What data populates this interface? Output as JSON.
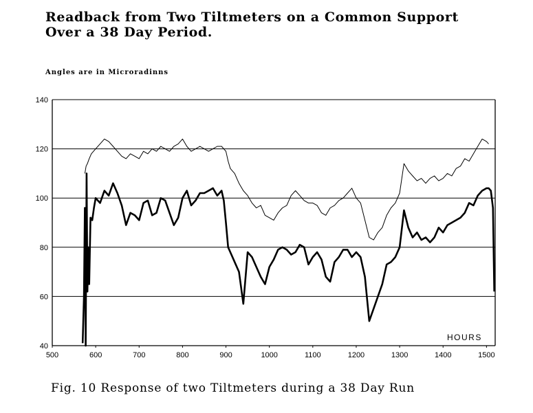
{
  "title_line1": "Readback from Two Tiltmeters on a Common Support",
  "title_line2": "Over a 38 Day Period.",
  "note": "Angles are in Microradinns",
  "caption": "Fig. 10 Response of two Tiltmeters during a 38 Day Run",
  "chart_data": {
    "type": "line",
    "title": "Readback from Two Tiltmeters on a Common Support Over a 38 Day Period.",
    "xlabel": "HOURS",
    "ylabel": "",
    "xlim": [
      500,
      1520
    ],
    "ylim": [
      40,
      140
    ],
    "x_ticks": [
      "500",
      "600",
      "700",
      "800",
      "900",
      "1000",
      "1100",
      "1200",
      "1300",
      "1400",
      "1500"
    ],
    "y_ticks": [
      "40",
      "60",
      "80",
      "100",
      "120",
      "140"
    ],
    "grid": "horizontal",
    "series": [
      {
        "x": [
          575,
          578,
          581,
          585,
          590,
          600,
          610,
          620,
          630,
          640,
          650,
          660,
          670,
          680,
          690,
          700,
          710,
          720,
          730,
          740,
          750,
          760,
          770,
          780,
          790,
          800,
          810,
          820,
          830,
          840,
          850,
          860,
          870,
          880,
          890,
          900,
          905,
          910,
          915,
          920,
          925,
          930,
          940,
          950,
          960,
          970,
          980,
          990,
          1000,
          1010,
          1020,
          1030,
          1040,
          1050,
          1060,
          1070,
          1080,
          1090,
          1100,
          1110,
          1120,
          1130,
          1140,
          1150,
          1160,
          1170,
          1180,
          1190,
          1200,
          1210,
          1220,
          1230,
          1240,
          1250,
          1260,
          1270,
          1280,
          1290,
          1300,
          1310,
          1320,
          1330,
          1340,
          1350,
          1360,
          1370,
          1380,
          1390,
          1400,
          1410,
          1420,
          1430,
          1440,
          1450,
          1460,
          1470,
          1480,
          1490,
          1500,
          1505
        ],
        "y": [
          110,
          113,
          114,
          116,
          118,
          120,
          122,
          124,
          123,
          121,
          119,
          117,
          116,
          118,
          117,
          116,
          119,
          118,
          120,
          119,
          121,
          120,
          119,
          121,
          122,
          124,
          121,
          119,
          120,
          121,
          120,
          119,
          120,
          121,
          121,
          119,
          115,
          112,
          111,
          110,
          108,
          106,
          103,
          101,
          98,
          96,
          97,
          93,
          92,
          91,
          94,
          96,
          97,
          101,
          103,
          101,
          99,
          98,
          98,
          97,
          94,
          93,
          96,
          97,
          99,
          100,
          102,
          104,
          100,
          98,
          91,
          84,
          83,
          86,
          88,
          93,
          96,
          98,
          102,
          114,
          111,
          109,
          107,
          108,
          106,
          108,
          109,
          107,
          108,
          110,
          109,
          112,
          113,
          116,
          115,
          118,
          121,
          124,
          123,
          122
        ]
      },
      {
        "x": [
          570,
          573,
          575,
          577,
          579,
          581,
          583,
          585,
          588,
          592,
          596,
          600,
          610,
          620,
          630,
          640,
          650,
          660,
          670,
          680,
          690,
          700,
          710,
          720,
          730,
          740,
          750,
          760,
          770,
          780,
          790,
          800,
          810,
          820,
          830,
          840,
          850,
          860,
          870,
          880,
          890,
          895,
          900,
          905,
          910,
          920,
          930,
          940,
          950,
          960,
          970,
          980,
          990,
          1000,
          1010,
          1020,
          1030,
          1040,
          1050,
          1060,
          1070,
          1080,
          1090,
          1100,
          1110,
          1120,
          1130,
          1140,
          1150,
          1160,
          1170,
          1180,
          1190,
          1200,
          1210,
          1220,
          1230,
          1240,
          1250,
          1260,
          1270,
          1280,
          1290,
          1300,
          1310,
          1320,
          1330,
          1340,
          1350,
          1360,
          1370,
          1380,
          1390,
          1400,
          1410,
          1420,
          1430,
          1440,
          1450,
          1460,
          1470,
          1480,
          1490,
          1500,
          1505,
          1510,
          1515,
          1518
        ],
        "y": [
          41,
          60,
          96,
          40,
          110,
          62,
          80,
          65,
          92,
          91,
          96,
          100,
          98,
          103,
          101,
          106,
          102,
          97,
          89,
          94,
          93,
          91,
          98,
          99,
          93,
          94,
          100,
          99,
          94,
          89,
          92,
          100,
          103,
          97,
          99,
          102,
          102,
          103,
          104,
          101,
          103,
          99,
          90,
          80,
          78,
          74,
          70,
          57,
          78,
          76,
          72,
          68,
          65,
          72,
          75,
          79,
          80,
          79,
          77,
          78,
          81,
          80,
          73,
          76,
          78,
          75,
          68,
          66,
          74,
          76,
          79,
          79,
          76,
          78,
          76,
          68,
          50,
          55,
          60,
          65,
          73,
          74,
          76,
          80,
          95,
          88,
          84,
          86,
          83,
          84,
          82,
          84,
          88,
          86,
          89,
          90,
          91,
          92,
          94,
          98,
          97,
          101,
          103,
          104,
          104,
          103,
          96,
          62
        ]
      }
    ]
  }
}
